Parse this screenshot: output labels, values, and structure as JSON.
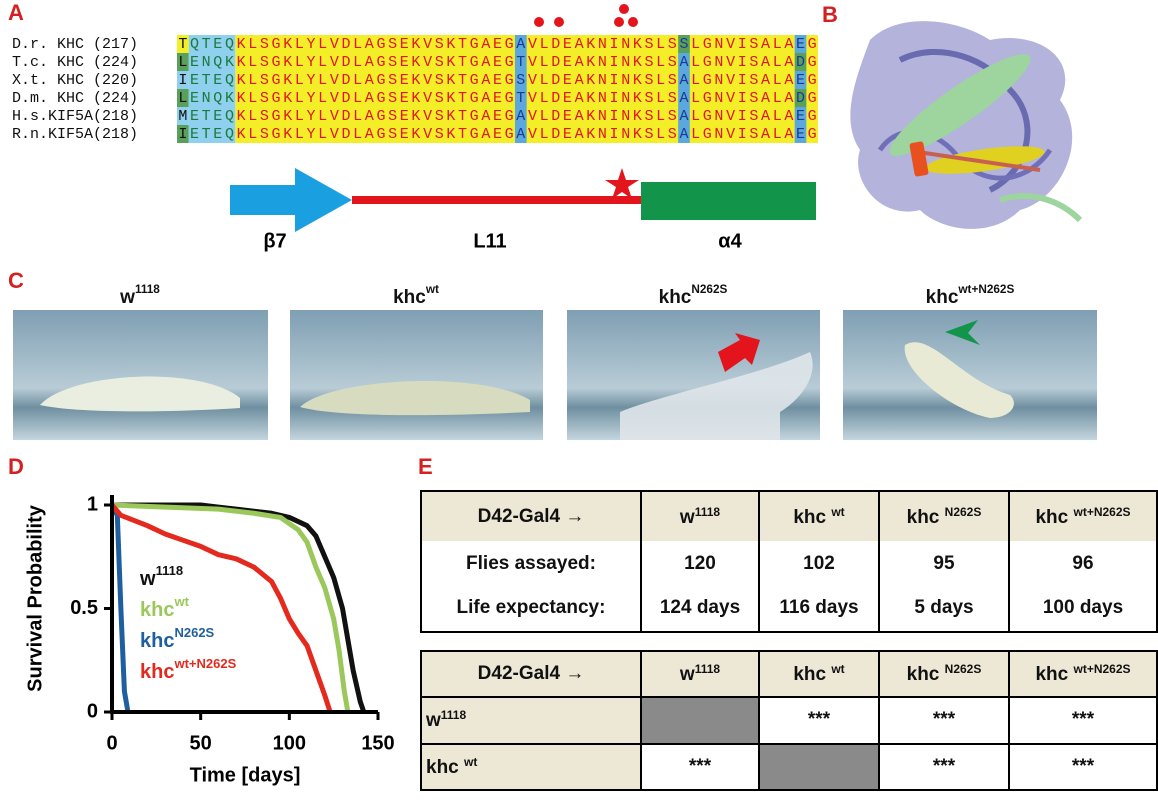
{
  "panel_a": {
    "letter": "A",
    "rows": [
      {
        "label": "D.r. KHC (217)",
        "seq": "TQTEQKLSGKLYLVDLAGSEKVSKTGAEGAVLDEAKNINKSLSSLGNVISALAEG"
      },
      {
        "label": "T.c. KHC (224)",
        "seq": "LENQKKLSGKLYLVDLAGSEKVSKTGAEGTVLDEAKNINKSLSALGNVISALADG"
      },
      {
        "label": "X.t. KHC (220)",
        "seq": "IETEQKLSGKLYLVDLAGSEKVSKTGAEGSVLDEAKNINKSLSALGNVISALAEG"
      },
      {
        "label": "D.m. KHC (224)",
        "seq": "LENQKKLSGKLYLVDLAGSEKVSKTGAEGTVLDEAKNINKSLSALGNVISALADG"
      },
      {
        "label": "H.s.KIF5A(218)",
        "seq": "METEQKLSGKLYLVDLAGSEKVSKTGAEGAVLDEAKNINKSLSALGNVISALAEG"
      },
      {
        "label": "R.n.KIF5A(218)",
        "seq": "IETEQKLSGKLYLVDLAGSEKVSKTGAEGAVLDEAKNINKSLSALGNVISALAEG"
      }
    ],
    "structure": {
      "strand": "β7",
      "loop": "L11",
      "helix": "α4"
    }
  },
  "panel_b": {
    "letter": "B"
  },
  "panel_c": {
    "letter": "C",
    "images": [
      {
        "base": "w",
        "sup": "1118"
      },
      {
        "base": "khc",
        "sup": "wt"
      },
      {
        "base": "khc",
        "sup": "N262S"
      },
      {
        "base": "khc",
        "sup": "wt+N262S"
      }
    ]
  },
  "panel_d": {
    "letter": "D"
  },
  "chart_data": {
    "type": "line",
    "xlabel": "Time [days]",
    "ylabel": "Survival Probability",
    "xlim": [
      0,
      150
    ],
    "ylim": [
      0,
      1
    ],
    "xticks": [
      0,
      50,
      100,
      150
    ],
    "yticks": [
      0,
      0.5,
      1
    ],
    "series": [
      {
        "name": "w",
        "name_sup": "1118",
        "color": "#111111",
        "x": [
          0,
          50,
          60,
          70,
          80,
          90,
          100,
          110,
          115,
          120,
          125,
          130,
          133,
          136,
          140,
          142
        ],
        "values": [
          1,
          1,
          0.99,
          0.98,
          0.97,
          0.96,
          0.94,
          0.9,
          0.85,
          0.75,
          0.65,
          0.5,
          0.35,
          0.2,
          0.05,
          0
        ]
      },
      {
        "name": "khc",
        "name_sup": "wt",
        "color": "#9bc85a",
        "x": [
          0,
          60,
          80,
          95,
          105,
          110,
          115,
          120,
          125,
          128,
          131,
          133
        ],
        "values": [
          1,
          0.98,
          0.96,
          0.94,
          0.88,
          0.82,
          0.7,
          0.6,
          0.45,
          0.3,
          0.1,
          0
        ]
      },
      {
        "name": "khc",
        "name_sup": "N262S",
        "color": "#1f5fa0",
        "x": [
          0,
          3,
          5,
          7,
          9
        ],
        "values": [
          1,
          0.95,
          0.5,
          0.1,
          0
        ]
      },
      {
        "name": "khc",
        "name_sup": "wt+N262S",
        "color": "#e42a1e",
        "x": [
          0,
          5,
          20,
          30,
          40,
          50,
          60,
          70,
          80,
          90,
          95,
          100,
          105,
          110,
          115,
          120,
          123
        ],
        "values": [
          1,
          0.95,
          0.9,
          0.86,
          0.83,
          0.8,
          0.76,
          0.74,
          0.7,
          0.63,
          0.55,
          0.45,
          0.38,
          0.32,
          0.2,
          0.08,
          0
        ]
      }
    ]
  },
  "panel_e": {
    "letter": "E",
    "table1": {
      "header": [
        "D42-Gal4 →",
        {
          "base": "w",
          "sup": "1118"
        },
        {
          "base": "khc ",
          "sup": "wt"
        },
        {
          "base": "khc ",
          "sup": "N262S"
        },
        {
          "base": "khc ",
          "sup": "wt+N262S"
        }
      ],
      "rows": [
        [
          "Flies assayed:",
          120,
          102,
          95,
          96
        ],
        [
          "Life expectancy:",
          "124 days",
          "116 days",
          "5 days",
          "100 days"
        ]
      ]
    },
    "table2": {
      "header": [
        "D42-Gal4 →",
        {
          "base": "w",
          "sup": "1118"
        },
        {
          "base": "khc ",
          "sup": "wt"
        },
        {
          "base": "khc ",
          "sup": "N262S"
        },
        {
          "base": "khc ",
          "sup": "wt+N262S"
        }
      ],
      "rows": [
        [
          {
            "base": "w",
            "sup": "1118"
          },
          null,
          "***",
          "***",
          "***"
        ],
        [
          {
            "base": "khc ",
            "sup": "wt"
          },
          "***",
          null,
          "***",
          "***"
        ]
      ]
    }
  }
}
